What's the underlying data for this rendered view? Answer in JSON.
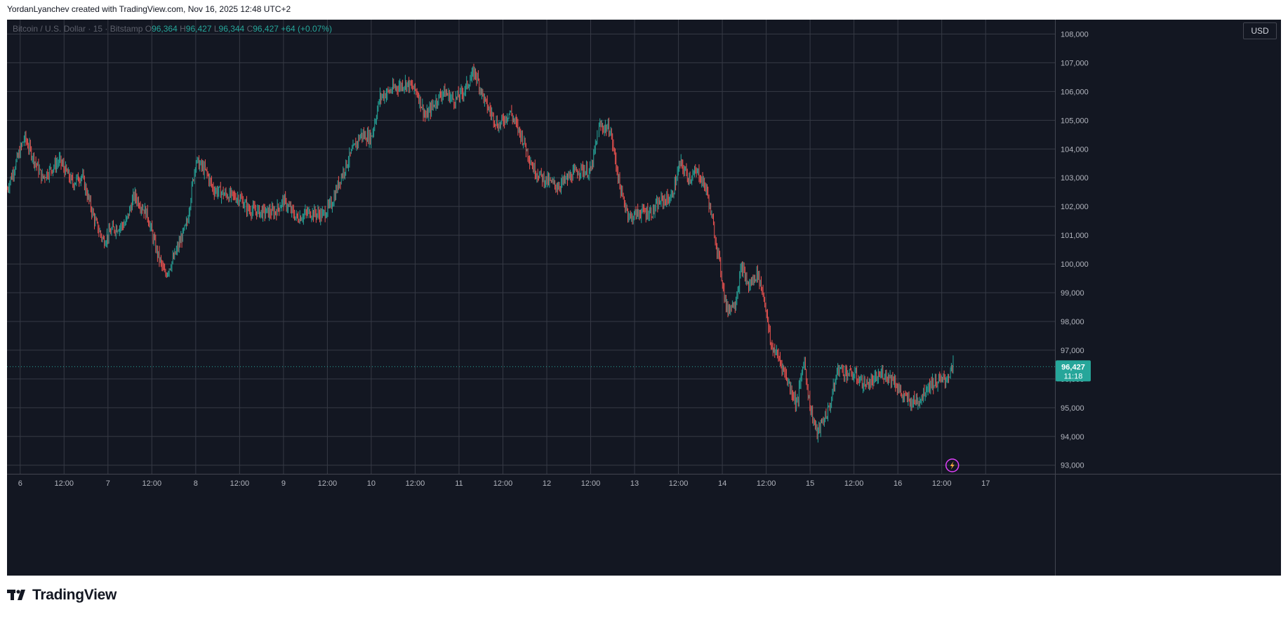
{
  "header": {
    "attribution": "YordanLyanchev created with TradingView.com, Nov 16, 2025 12:48 UTC+2"
  },
  "legend": {
    "symbol": "Bitcoin / U.S. Dollar · 15 · Bitstamp",
    "o_label": "O",
    "o_value": "96,364",
    "h_label": "H",
    "h_value": "96,427",
    "l_label": "L",
    "l_value": "96,344",
    "c_label": "C",
    "c_value": "96,427",
    "change": "+64 (+0.07%)"
  },
  "currency_button": "USD",
  "last_price": {
    "value": "96,427",
    "countdown": "11:18"
  },
  "footer": {
    "brand": "TradingView"
  },
  "colors": {
    "up": "#26a69a",
    "down": "#ef5350",
    "background": "#131722",
    "grid": "#363a45",
    "axis_text": "#b2b5be"
  },
  "chart_data": {
    "type": "candlestick",
    "title": "",
    "ylim": [
      92700,
      108500
    ],
    "y_ticks": [
      "93,000",
      "94,000",
      "95,000",
      "96,000",
      "97,000",
      "98,000",
      "99,000",
      "100,000",
      "101,000",
      "102,000",
      "103,000",
      "104,000",
      "105,000",
      "106,000",
      "107,000",
      "108,000"
    ],
    "y_tick_values": [
      93000,
      94000,
      95000,
      96000,
      97000,
      98000,
      99000,
      100000,
      101000,
      102000,
      103000,
      104000,
      105000,
      106000,
      107000,
      108000
    ],
    "x_ticks": [
      "6",
      "12:00",
      "7",
      "12:00",
      "8",
      "12:00",
      "9",
      "12:00",
      "10",
      "12:00",
      "11",
      "12:00",
      "12",
      "12:00",
      "13",
      "12:00",
      "14",
      "12:00",
      "15",
      "12:00",
      "16",
      "12:00",
      "17"
    ],
    "x_tick_days": [
      6,
      6.5,
      7,
      7.5,
      8,
      8.5,
      9,
      9.5,
      10,
      10.5,
      11,
      11.5,
      12,
      12.5,
      13,
      13.5,
      14,
      14.5,
      15,
      15.5,
      16,
      16.5,
      17
    ],
    "xlim": [
      5.85,
      17.79
    ],
    "price_path": [
      [
        5.85,
        102600
      ],
      [
        6.05,
        104400
      ],
      [
        6.25,
        103000
      ],
      [
        6.45,
        103600
      ],
      [
        6.6,
        102800
      ],
      [
        6.7,
        103100
      ],
      [
        6.85,
        101500
      ],
      [
        6.95,
        100800
      ],
      [
        7.05,
        101200
      ],
      [
        7.2,
        101400
      ],
      [
        7.3,
        102400
      ],
      [
        7.45,
        101700
      ],
      [
        7.55,
        100500
      ],
      [
        7.65,
        99600
      ],
      [
        7.75,
        100200
      ],
      [
        7.9,
        101400
      ],
      [
        8.0,
        103600
      ],
      [
        8.12,
        103200
      ],
      [
        8.2,
        102600
      ],
      [
        8.35,
        102400
      ],
      [
        8.5,
        102300
      ],
      [
        8.6,
        101900
      ],
      [
        8.75,
        101800
      ],
      [
        8.9,
        101800
      ],
      [
        9.0,
        102200
      ],
      [
        9.15,
        101600
      ],
      [
        9.3,
        101800
      ],
      [
        9.45,
        101700
      ],
      [
        9.55,
        102100
      ],
      [
        9.65,
        103000
      ],
      [
        9.75,
        103700
      ],
      [
        9.88,
        104500
      ],
      [
        10.0,
        104400
      ],
      [
        10.1,
        105800
      ],
      [
        10.25,
        106100
      ],
      [
        10.4,
        106300
      ],
      [
        10.52,
        106000
      ],
      [
        10.62,
        105100
      ],
      [
        10.72,
        105600
      ],
      [
        10.82,
        106000
      ],
      [
        10.95,
        105700
      ],
      [
        11.05,
        106000
      ],
      [
        11.18,
        106700
      ],
      [
        11.3,
        105600
      ],
      [
        11.45,
        104800
      ],
      [
        11.58,
        105300
      ],
      [
        11.72,
        104400
      ],
      [
        11.85,
        103300
      ],
      [
        11.95,
        103000
      ],
      [
        12.0,
        102900
      ],
      [
        12.12,
        102700
      ],
      [
        12.25,
        103000
      ],
      [
        12.38,
        103300
      ],
      [
        12.5,
        103200
      ],
      [
        12.6,
        104800
      ],
      [
        12.72,
        104700
      ],
      [
        12.85,
        102400
      ],
      [
        12.95,
        101600
      ],
      [
        13.05,
        101800
      ],
      [
        13.2,
        101800
      ],
      [
        13.3,
        102200
      ],
      [
        13.42,
        102300
      ],
      [
        13.52,
        103500
      ],
      [
        13.62,
        103000
      ],
      [
        13.72,
        103200
      ],
      [
        13.82,
        102600
      ],
      [
        13.95,
        100400
      ],
      [
        14.05,
        98400
      ],
      [
        14.15,
        98700
      ],
      [
        14.22,
        99900
      ],
      [
        14.3,
        99200
      ],
      [
        14.4,
        99700
      ],
      [
        14.48,
        98800
      ],
      [
        14.55,
        97200
      ],
      [
        14.65,
        96700
      ],
      [
        14.75,
        95900
      ],
      [
        14.85,
        95100
      ],
      [
        14.93,
        96700
      ],
      [
        15.0,
        95000
      ],
      [
        15.08,
        94100
      ],
      [
        15.14,
        94500
      ],
      [
        15.22,
        95000
      ],
      [
        15.32,
        96400
      ],
      [
        15.42,
        96200
      ],
      [
        15.52,
        96100
      ],
      [
        15.62,
        95800
      ],
      [
        15.72,
        95900
      ],
      [
        15.82,
        96200
      ],
      [
        15.95,
        96000
      ],
      [
        16.05,
        95400
      ],
      [
        16.15,
        95200
      ],
      [
        16.25,
        95300
      ],
      [
        16.35,
        95800
      ],
      [
        16.45,
        95900
      ],
      [
        16.55,
        96000
      ],
      [
        16.63,
        96427
      ]
    ]
  }
}
